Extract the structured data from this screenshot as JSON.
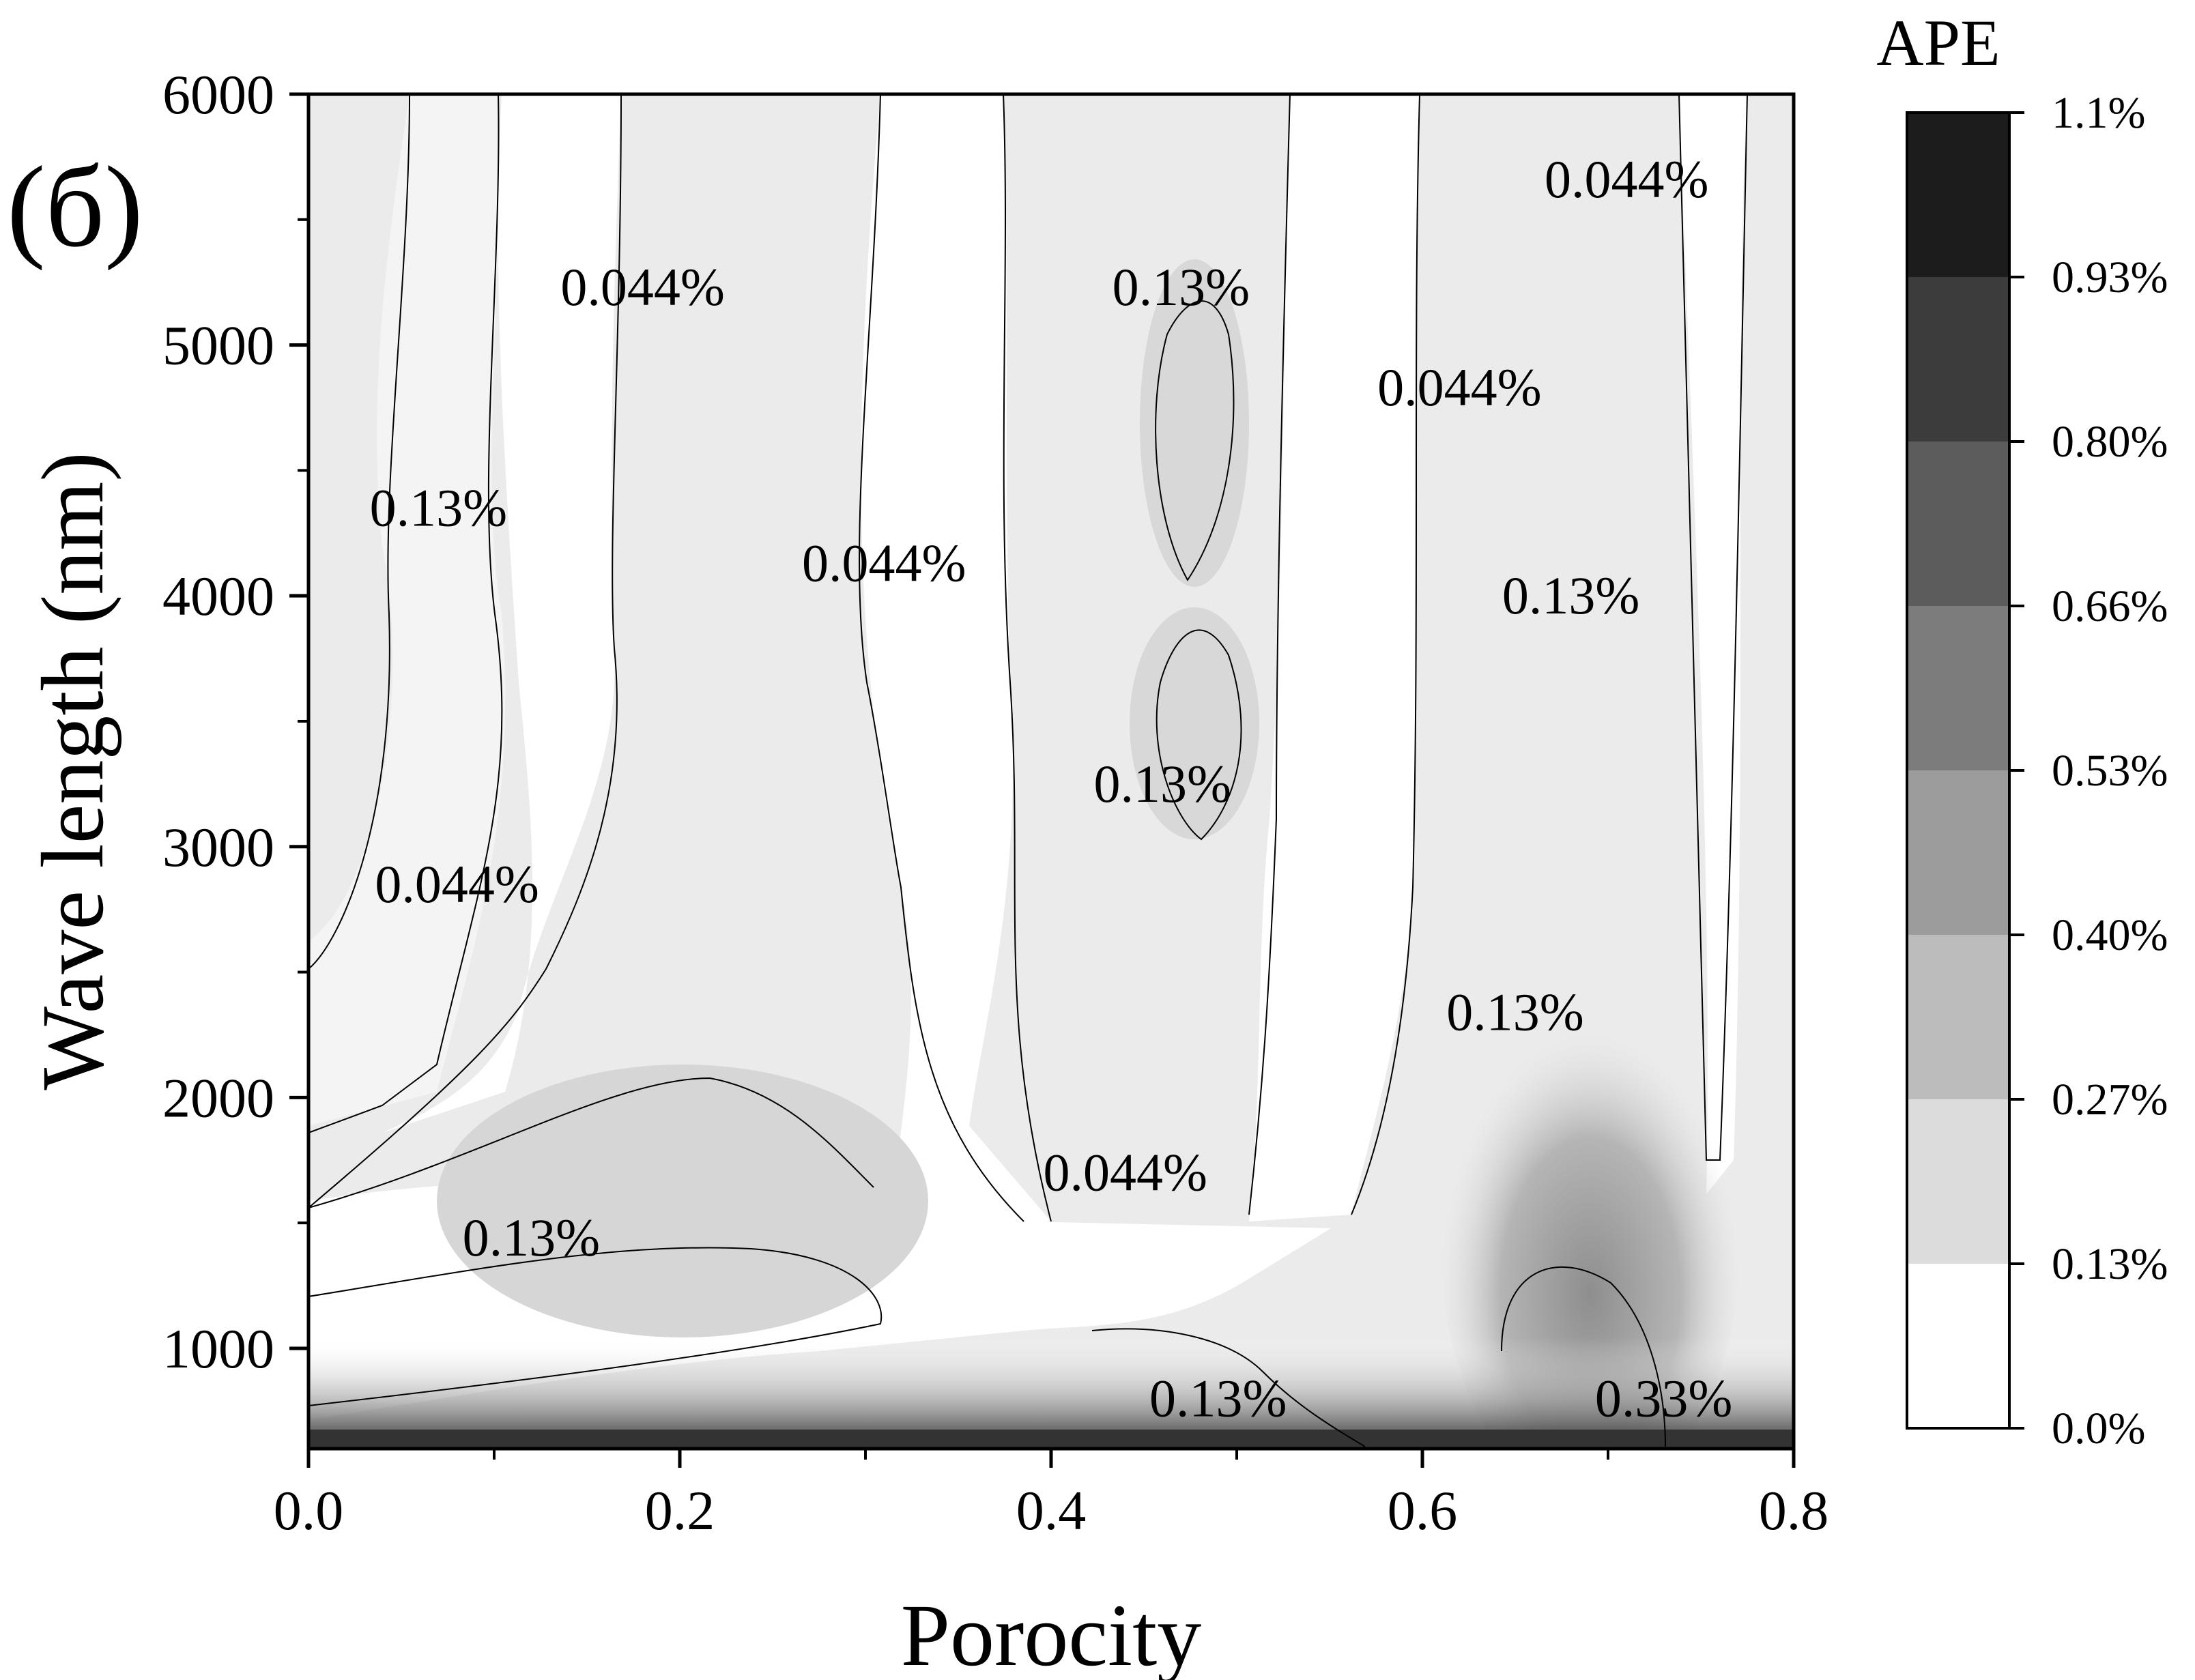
{
  "chart_data": {
    "type": "contour",
    "panel_tag": "(б)",
    "xlabel": "Porocity",
    "ylabel": "Wave length (nm)",
    "xlim": [
      0.0,
      0.8
    ],
    "ylim": [
      600,
      6000
    ],
    "x_ticks": [
      0.0,
      0.2,
      0.4,
      0.6,
      0.8
    ],
    "x_tick_labels": [
      "0.0",
      "0.2",
      "0.4",
      "0.6",
      "0.8"
    ],
    "y_ticks": [
      1000,
      2000,
      3000,
      4000,
      5000,
      6000
    ],
    "y_tick_labels": [
      "1000",
      "2000",
      "3000",
      "4000",
      "5000",
      "6000"
    ],
    "colorbar": {
      "title": "APE",
      "levels": [
        "0.0%",
        "0.13%",
        "0.27%",
        "0.40%",
        "0.53%",
        "0.66%",
        "0.80%",
        "0.93%",
        "1.1%"
      ],
      "colors": [
        "#ffffff",
        "#dcdcdc",
        "#bcbcbc",
        "#9c9c9c",
        "#7c7c7c",
        "#5c5c5c",
        "#3c3c3c",
        "#1c1c1c"
      ]
    },
    "contour_labels": [
      {
        "text": "0.044%",
        "x": 0.18,
        "y": 5230
      },
      {
        "text": "0.13%",
        "x": 0.47,
        "y": 5230
      },
      {
        "text": "0.044%",
        "x": 0.71,
        "y": 5660
      },
      {
        "text": "0.044%",
        "x": 0.62,
        "y": 4830
      },
      {
        "text": "0.13%",
        "x": 0.07,
        "y": 4350
      },
      {
        "text": "0.044%",
        "x": 0.31,
        "y": 4130
      },
      {
        "text": "0.13%",
        "x": 0.68,
        "y": 4000
      },
      {
        "text": "0.13%",
        "x": 0.46,
        "y": 3250
      },
      {
        "text": "0.044%",
        "x": 0.08,
        "y": 2850
      },
      {
        "text": "0.13%",
        "x": 0.65,
        "y": 2340
      },
      {
        "text": "0.044%",
        "x": 0.44,
        "y": 1700
      },
      {
        "text": "0.13%",
        "x": 0.12,
        "y": 1440
      },
      {
        "text": "0.13%",
        "x": 0.49,
        "y": 800
      },
      {
        "text": "0.33%",
        "x": 0.73,
        "y": 800
      }
    ]
  }
}
